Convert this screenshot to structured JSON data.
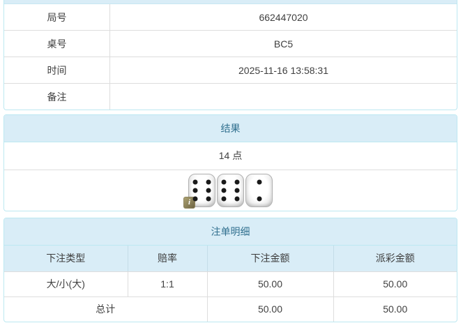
{
  "colors": {
    "panel_header_bg": "#d9edf7",
    "panel_border": "#bce8f1",
    "header_text": "#31708f",
    "body_text": "#404040",
    "odds_red": "#ff0000",
    "row_divider": "#dddddd"
  },
  "info_table": {
    "rows": [
      {
        "label": "局号",
        "value": "662447020"
      },
      {
        "label": "桌号",
        "value": "BC5"
      },
      {
        "label": "时间",
        "value": "2025-11-16 13:58:31"
      },
      {
        "label": "备注",
        "value": ""
      }
    ]
  },
  "result_panel": {
    "title": "结果",
    "points": "14 点",
    "dice": [
      6,
      6,
      2
    ],
    "info_badge": "i"
  },
  "bets_panel": {
    "title": "注单明细",
    "columns": [
      "下注类型",
      "赔率",
      "下注金额",
      "派彩金额"
    ],
    "rows": [
      {
        "type": "大/小(大)",
        "odds": "1:1",
        "bet": "50.00",
        "payout": "50.00"
      }
    ],
    "total": {
      "label": "总计",
      "bet": "50.00",
      "payout": "50.00"
    }
  }
}
